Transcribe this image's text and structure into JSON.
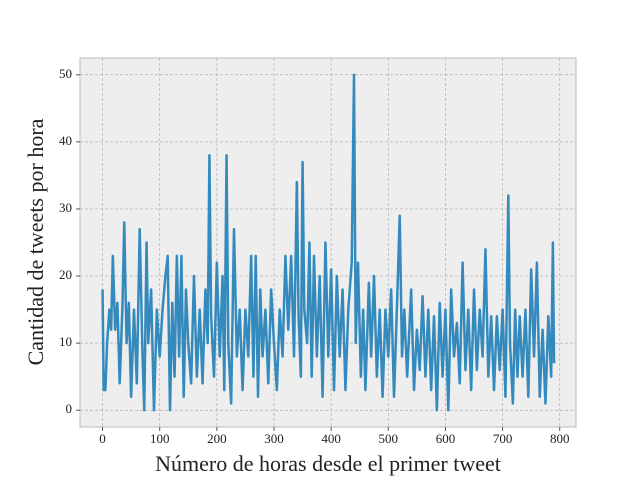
{
  "chart_data": {
    "type": "line",
    "xlabel": "Número de horas desde el primer tweet",
    "ylabel": "Cantidad de tweets por hora",
    "color": "#348abd",
    "x": [
      0,
      2,
      5,
      8,
      12,
      15,
      18,
      22,
      26,
      30,
      35,
      38,
      42,
      46,
      50,
      55,
      60,
      65,
      70,
      73,
      77,
      80,
      85,
      90,
      95,
      100,
      105,
      110,
      114,
      118,
      122,
      126,
      130,
      134,
      138,
      142,
      146,
      150,
      155,
      160,
      165,
      170,
      175,
      180,
      184,
      187,
      190,
      195,
      200,
      205,
      210,
      213,
      217,
      220,
      225,
      230,
      235,
      240,
      245,
      250,
      255,
      260,
      264,
      268,
      272,
      276,
      280,
      285,
      290,
      295,
      300,
      305,
      310,
      315,
      320,
      325,
      330,
      335,
      340,
      343,
      347,
      350,
      353,
      358,
      362,
      366,
      370,
      375,
      380,
      385,
      390,
      395,
      400,
      405,
      410,
      415,
      420,
      425,
      430,
      436,
      440,
      443,
      447,
      452,
      456,
      460,
      466,
      470,
      475,
      480,
      485,
      490,
      495,
      500,
      505,
      510,
      515,
      520,
      524,
      528,
      533,
      540,
      545,
      550,
      555,
      560,
      565,
      570,
      575,
      580,
      585,
      590,
      595,
      600,
      605,
      610,
      615,
      620,
      625,
      630,
      635,
      640,
      645,
      650,
      655,
      660,
      665,
      670,
      675,
      680,
      685,
      690,
      695,
      700,
      705,
      710,
      713,
      718,
      722,
      726,
      730,
      735,
      740,
      745,
      750,
      755,
      760,
      765,
      770,
      775,
      780,
      785,
      788,
      790
    ],
    "values": [
      18,
      3,
      3,
      10,
      15,
      12,
      23,
      12,
      16,
      4,
      16,
      28,
      10,
      16,
      2,
      15,
      4,
      27,
      8,
      0,
      25,
      10,
      18,
      0,
      15,
      8,
      15,
      20,
      23,
      0,
      16,
      5,
      23,
      8,
      23,
      2,
      18,
      10,
      4,
      20,
      5,
      15,
      4,
      18,
      10,
      38,
      14,
      5,
      22,
      8,
      20,
      3,
      38,
      10,
      1,
      27,
      8,
      15,
      3,
      15,
      8,
      23,
      5,
      23,
      2,
      18,
      8,
      15,
      4,
      18,
      10,
      3,
      15,
      8,
      23,
      12,
      23,
      8,
      34,
      14,
      5,
      37,
      15,
      10,
      25,
      5,
      23,
      8,
      20,
      2,
      25,
      8,
      21,
      3,
      20,
      8,
      18,
      3,
      15,
      22,
      50,
      10,
      22,
      5,
      15,
      3,
      19,
      8,
      20,
      5,
      15,
      2,
      15,
      8,
      18,
      2,
      15,
      29,
      8,
      15,
      5,
      18,
      3,
      12,
      6,
      17,
      5,
      15,
      3,
      14,
      0,
      16,
      5,
      15,
      0,
      18,
      8,
      13,
      4,
      22,
      6,
      15,
      3,
      18,
      6,
      15,
      8,
      24,
      5,
      14,
      3,
      14,
      6,
      15,
      2,
      32,
      10,
      1,
      15,
      5,
      14,
      5,
      15,
      2,
      21,
      8,
      22,
      2,
      12,
      1,
      14,
      5,
      25,
      7
    ],
    "xlim": [
      -39.45,
      828.45
    ],
    "ylim": [
      -2.5,
      52.5
    ],
    "xticks": [
      0,
      100,
      200,
      300,
      400,
      500,
      600,
      700,
      800
    ],
    "yticks": [
      0,
      10,
      20,
      30,
      40,
      50
    ],
    "grid": true
  }
}
